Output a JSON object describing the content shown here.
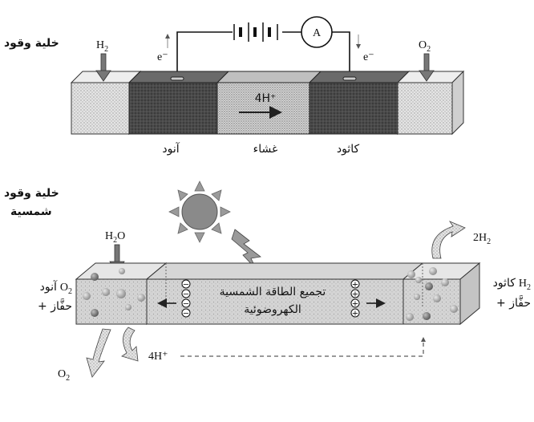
{
  "top_cell": {
    "title": "خلية وقود",
    "h2": {
      "base": "H",
      "sub": "2"
    },
    "o2": {
      "base": "O",
      "sub": "2"
    },
    "electron_left": "e⁻",
    "electron_right": "e⁻",
    "ammeter": "A",
    "proton_flow": "4H⁺",
    "anode_label": "آنود",
    "membrane_label": "غشاء",
    "cathode_label": "كاثود"
  },
  "solar_cell": {
    "title_line1": "خلية وقود",
    "title_line2": "شمسية",
    "water": {
      "base": "H",
      "sub": "2",
      "tail": "O"
    },
    "h2_out": {
      "pre": "2H",
      "sub": "2"
    },
    "anode_line1": {
      "text": "آنود",
      "base": "O",
      "sub": "2"
    },
    "anode_line2": "+ حفَّاز",
    "cathode_line1": {
      "text": "كاثود",
      "base": "H",
      "sub": "2"
    },
    "cathode_line2": "+ حفَّاز",
    "center_line1": "تجميع الطاقة الشمسية",
    "center_line2": "الكهروضوئية",
    "proton_flow": "4H⁺",
    "o2_out": {
      "base": "O",
      "sub": "2"
    }
  },
  "colors": {
    "dark_block": "#4a4a4a",
    "membrane": "#cfcfcf",
    "light_box": "#dcdcdc",
    "arrow_gray": "#777777",
    "sun": "#8a8a8a"
  }
}
